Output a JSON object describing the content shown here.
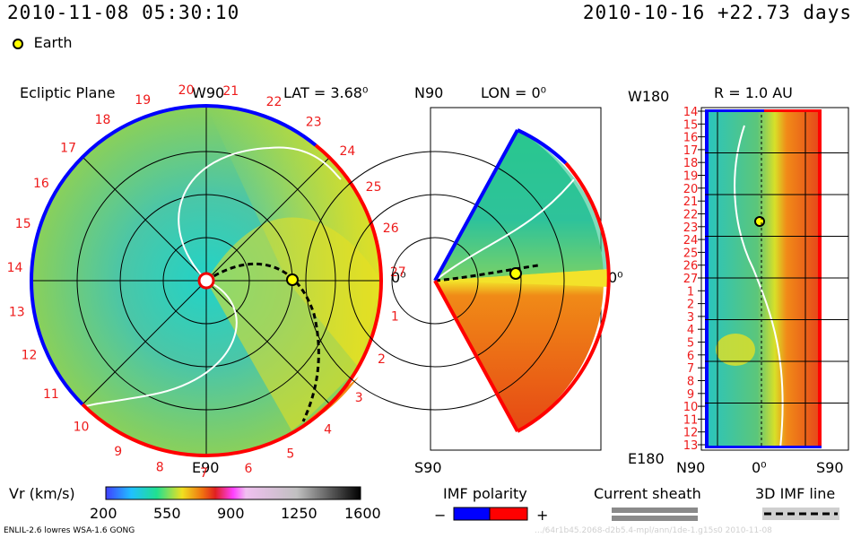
{
  "header": {
    "datetime_left": "2010-11-08 05:30:10",
    "datetime_right": "2010-10-16 +22.73 days",
    "earth_label": "Earth"
  },
  "panels": {
    "ecliptic": {
      "title": "Ecliptic Plane",
      "lat_label": "LAT = 3.68⁰",
      "top_label": "W90",
      "bottom_label": "E90",
      "right_label": "0⁰"
    },
    "meridional": {
      "top_left": "N90",
      "lon_label": "LON = 0⁰",
      "bottom_left": "S90",
      "right_label": "0⁰"
    },
    "radial": {
      "top_left": "W180",
      "r_label": "R = 1.0 AU",
      "bottom_left": "E180",
      "bottom_n": "N90",
      "bottom_mid": "0⁰",
      "bottom_s": "S90"
    }
  },
  "chart_data": {
    "type": "heatmap",
    "title": "",
    "ecliptic_day_labels": [
      "20",
      "21",
      "22",
      "23",
      "24",
      "25",
      "26",
      "27",
      "1",
      "2",
      "3",
      "4",
      "5",
      "6",
      "7",
      "8",
      "9",
      "10",
      "11",
      "12",
      "13",
      "14",
      "15",
      "16",
      "17",
      "18",
      "19"
    ],
    "radial_day_labels": [
      "14",
      "15",
      "16",
      "17",
      "18",
      "19",
      "20",
      "21",
      "22",
      "23",
      "24",
      "25",
      "26",
      "27",
      "1",
      "2",
      "3",
      "4",
      "5",
      "6",
      "7",
      "8",
      "9",
      "10",
      "11",
      "12",
      "13"
    ],
    "colorbar": {
      "label": "Vr (km/s)",
      "ticks": [
        200,
        550,
        900,
        1250,
        1600
      ],
      "range": [
        200,
        1600
      ]
    }
  },
  "legend": {
    "imf_polarity": "IMF polarity",
    "minus": "−",
    "plus": "+",
    "current_sheath": "Current sheath",
    "imf_line": "3D IMF line"
  },
  "footer": {
    "model_info": "ENLIL-2.6 lowres WSA-1.6 GONG",
    "run_id": ".../64r1b45.2068-d2b5.4-mpl/ann/1de-1.g15s0    2010-11-08"
  },
  "colors": {
    "polarity_neg": "#0000ff",
    "polarity_pos": "#ff0000",
    "day_labels": "#ee1b1b"
  }
}
